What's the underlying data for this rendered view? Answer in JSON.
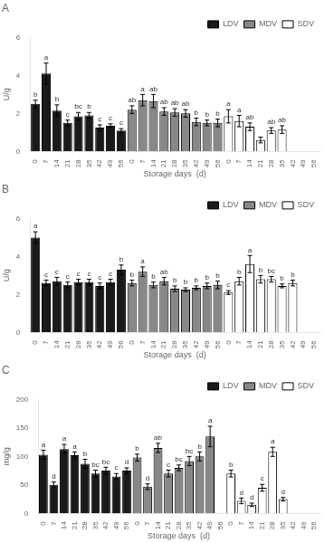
{
  "chart_data": [
    {
      "type": "bar",
      "title": "A",
      "xlabel": "Storage days  (d)",
      "ylabel": "U/g",
      "categories": [
        "0",
        "7",
        "14",
        "21",
        "28",
        "35",
        "42",
        "49",
        "56",
        "0",
        "7",
        "14",
        "21",
        "28",
        "35",
        "42",
        "49",
        "56",
        "0",
        "7",
        "14",
        "21",
        "28",
        "35",
        "42",
        "49",
        "56"
      ],
      "series": [
        {
          "name": "LDV",
          "color": "#1a1a1a",
          "values": [
            2.5,
            4.1,
            2.15,
            1.5,
            1.85,
            1.9,
            1.25,
            1.35,
            1.1,
            null,
            null,
            null,
            null,
            null,
            null,
            null,
            null,
            null,
            null,
            null,
            null,
            null,
            null,
            null,
            null,
            null,
            null
          ],
          "errors": [
            0.2,
            0.55,
            0.3,
            0.15,
            0.2,
            0.15,
            0.15,
            0.1,
            0.1,
            null,
            null,
            null,
            null,
            null,
            null,
            null,
            null,
            null,
            null,
            null,
            null,
            null,
            null,
            null,
            null,
            null,
            null
          ],
          "letters": [
            "b",
            "a",
            "b",
            "c",
            "bc",
            "b",
            "c",
            "c",
            "c",
            null,
            null,
            null,
            null,
            null,
            null,
            null,
            null,
            null,
            null,
            null,
            null,
            null,
            null,
            null,
            null,
            null,
            null
          ]
        },
        {
          "name": "MDV",
          "color": "#888888",
          "values": [
            null,
            null,
            null,
            null,
            null,
            null,
            null,
            null,
            null,
            2.2,
            2.7,
            2.65,
            2.1,
            2.05,
            2.0,
            1.55,
            1.5,
            1.5,
            null,
            null,
            null,
            null,
            null,
            null,
            null,
            null,
            null
          ],
          "errors": [
            null,
            null,
            null,
            null,
            null,
            null,
            null,
            null,
            null,
            0.2,
            0.3,
            0.35,
            0.2,
            0.2,
            0.2,
            0.2,
            0.15,
            0.2,
            null,
            null,
            null,
            null,
            null,
            null,
            null,
            null,
            null
          ],
          "letters": [
            null,
            null,
            null,
            null,
            null,
            null,
            null,
            null,
            null,
            "ab",
            "a",
            "ab",
            "ab",
            "ab",
            "ab",
            "b",
            "b",
            "b",
            null,
            null,
            null,
            null,
            null,
            null,
            null,
            null,
            null
          ]
        },
        {
          "name": "SDV",
          "color": "#ffffff",
          "values": [
            null,
            null,
            null,
            null,
            null,
            null,
            null,
            null,
            null,
            null,
            null,
            null,
            null,
            null,
            null,
            null,
            null,
            null,
            1.85,
            1.6,
            1.3,
            0.6,
            1.1,
            1.15,
            null,
            null,
            null
          ],
          "errors": [
            null,
            null,
            null,
            null,
            null,
            null,
            null,
            null,
            null,
            null,
            null,
            null,
            null,
            null,
            null,
            null,
            null,
            null,
            0.35,
            0.3,
            0.2,
            0.15,
            0.15,
            0.2,
            null,
            null,
            null
          ],
          "letters": [
            null,
            null,
            null,
            null,
            null,
            null,
            null,
            null,
            null,
            null,
            null,
            null,
            null,
            null,
            null,
            null,
            null,
            null,
            "a",
            "a",
            "ab",
            null,
            "ab",
            "ab",
            null,
            null,
            null
          ]
        }
      ],
      "ylim": [
        0,
        6
      ],
      "yticks": [
        0,
        2,
        4,
        6
      ],
      "grid": false,
      "legend": "upper right"
    },
    {
      "type": "bar",
      "title": "B",
      "xlabel": "Storage days  (d)",
      "ylabel": "U/g",
      "categories": [
        "0",
        "7",
        "14",
        "21",
        "28",
        "35",
        "42",
        "49",
        "56",
        "0",
        "7",
        "14",
        "21",
        "28",
        "35",
        "42",
        "49",
        "56",
        "0",
        "7",
        "14",
        "21",
        "28",
        "35",
        "42",
        "49",
        "56"
      ],
      "series": [
        {
          "name": "LDV",
          "color": "#1a1a1a",
          "values": [
            5.0,
            2.6,
            2.7,
            2.5,
            2.65,
            2.65,
            2.45,
            2.65,
            3.3,
            null,
            null,
            null,
            null,
            null,
            null,
            null,
            null,
            null,
            null,
            null,
            null,
            null,
            null,
            null,
            null,
            null,
            null
          ],
          "errors": [
            0.3,
            0.15,
            0.2,
            0.15,
            0.15,
            0.15,
            0.15,
            0.15,
            0.25,
            null,
            null,
            null,
            null,
            null,
            null,
            null,
            null,
            null,
            null,
            null,
            null,
            null,
            null,
            null,
            null,
            null,
            null
          ],
          "letters": [
            "a",
            "c",
            "c",
            "c",
            "c",
            "c",
            "c",
            "c",
            "b",
            null,
            null,
            null,
            null,
            null,
            null,
            null,
            null,
            null,
            null,
            null,
            null,
            null,
            null,
            null,
            null,
            null,
            null
          ]
        },
        {
          "name": "MDV",
          "color": "#888888",
          "values": [
            null,
            null,
            null,
            null,
            null,
            null,
            null,
            null,
            null,
            2.6,
            3.2,
            2.5,
            2.7,
            2.3,
            2.25,
            2.35,
            2.45,
            2.5,
            null,
            null,
            null,
            null,
            null,
            null,
            null,
            null,
            null
          ],
          "errors": [
            null,
            null,
            null,
            null,
            null,
            null,
            null,
            null,
            null,
            0.15,
            0.25,
            0.15,
            0.2,
            0.15,
            0.1,
            0.1,
            0.15,
            0.2,
            null,
            null,
            null,
            null,
            null,
            null,
            null,
            null,
            null
          ],
          "letters": [
            null,
            null,
            null,
            null,
            null,
            null,
            null,
            null,
            null,
            "b",
            "a",
            "b",
            "ab",
            "b",
            "b",
            "b",
            "b",
            "b",
            null,
            null,
            null,
            null,
            null,
            null,
            null,
            null,
            null
          ]
        },
        {
          "name": "SDV",
          "color": "#ffffff",
          "values": [
            null,
            null,
            null,
            null,
            null,
            null,
            null,
            null,
            null,
            null,
            null,
            null,
            null,
            null,
            null,
            null,
            null,
            null,
            2.1,
            2.7,
            3.6,
            2.8,
            2.8,
            2.45,
            2.6,
            null,
            null
          ],
          "errors": [
            null,
            null,
            null,
            null,
            null,
            null,
            null,
            null,
            null,
            null,
            null,
            null,
            null,
            null,
            null,
            null,
            null,
            null,
            0.1,
            0.2,
            0.45,
            0.2,
            0.15,
            0.1,
            0.15,
            null,
            null
          ],
          "letters": [
            null,
            null,
            null,
            null,
            null,
            null,
            null,
            null,
            null,
            null,
            null,
            null,
            null,
            null,
            null,
            null,
            null,
            null,
            "c",
            "b",
            "a",
            "b",
            "bc",
            "b",
            "b",
            null,
            null
          ]
        }
      ],
      "ylim": [
        0,
        6
      ],
      "yticks": [
        0,
        2,
        4,
        6
      ],
      "grid": false,
      "legend": "upper right"
    },
    {
      "type": "bar",
      "title": "C",
      "xlabel": "Storage days  (d)",
      "ylabel": "mg/g",
      "categories": [
        "0",
        "7",
        "14",
        "21",
        "28",
        "35",
        "42",
        "49",
        "56",
        "0",
        "7",
        "14",
        "21",
        "28",
        "35",
        "42",
        "49",
        "56",
        "0",
        "7",
        "14",
        "21",
        "28",
        "35",
        "42",
        "49",
        "56"
      ],
      "series": [
        {
          "name": "LDV",
          "color": "#1a1a1a",
          "values": [
            103,
            50,
            113,
            102,
            87,
            70,
            75,
            65,
            75,
            null,
            null,
            null,
            null,
            null,
            null,
            null,
            null,
            null,
            null,
            null,
            null,
            null,
            null,
            null,
            null,
            null,
            null
          ],
          "errors": [
            8,
            5,
            8,
            6,
            8,
            6,
            6,
            5,
            5,
            null,
            null,
            null,
            null,
            null,
            null,
            null,
            null,
            null,
            null,
            null,
            null,
            null,
            null,
            null,
            null,
            null,
            null
          ],
          "letters": [
            "a",
            "d",
            "a",
            "a",
            "b",
            "bc",
            "bc",
            "c",
            "d",
            null,
            null,
            null,
            null,
            null,
            null,
            null,
            null,
            null,
            null,
            null,
            null,
            null,
            null,
            null,
            null,
            null,
            null
          ]
        },
        {
          "name": "MDV",
          "color": "#888888",
          "values": [
            null,
            null,
            null,
            null,
            null,
            null,
            null,
            null,
            null,
            98,
            47,
            115,
            70,
            80,
            92,
            100,
            135,
            null,
            null,
            null,
            null,
            null,
            null,
            null,
            null,
            null,
            null
          ],
          "errors": [
            null,
            null,
            null,
            null,
            null,
            null,
            null,
            null,
            null,
            6,
            5,
            8,
            6,
            5,
            8,
            8,
            18,
            null,
            null,
            null,
            null,
            null,
            null,
            null,
            null,
            null,
            null
          ],
          "letters": [
            null,
            null,
            null,
            null,
            null,
            null,
            null,
            null,
            null,
            "b",
            "d",
            "ab",
            "c",
            "bc",
            "bc",
            "b",
            "a",
            null,
            null,
            null,
            null,
            null,
            null,
            null,
            null,
            null,
            null
          ]
        },
        {
          "name": "SDV",
          "color": "#ffffff",
          "values": [
            null,
            null,
            null,
            null,
            null,
            null,
            null,
            null,
            null,
            null,
            null,
            null,
            null,
            null,
            null,
            null,
            null,
            null,
            70,
            22,
            15,
            45,
            108,
            25,
            null,
            null,
            null
          ],
          "errors": [
            null,
            null,
            null,
            null,
            null,
            null,
            null,
            null,
            null,
            null,
            null,
            null,
            null,
            null,
            null,
            null,
            null,
            null,
            6,
            5,
            3,
            6,
            8,
            3,
            null,
            null,
            null
          ],
          "letters": [
            null,
            null,
            null,
            null,
            null,
            null,
            null,
            null,
            null,
            null,
            null,
            null,
            null,
            null,
            null,
            null,
            null,
            null,
            "b",
            "d",
            "d",
            "c",
            "a",
            "d",
            null,
            null,
            null
          ]
        }
      ],
      "ylim": [
        0,
        200
      ],
      "yticks": [
        0,
        50,
        100,
        150,
        200
      ],
      "grid": false,
      "legend": "upper right"
    }
  ]
}
